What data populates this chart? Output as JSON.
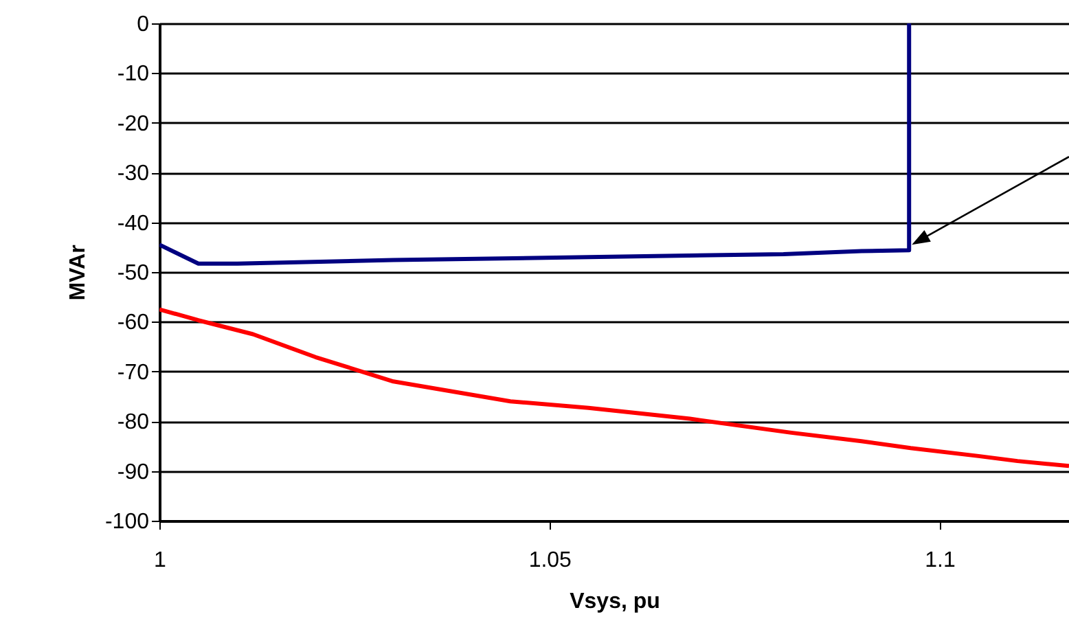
{
  "chart_data": {
    "type": "line",
    "xlabel": "Vsys, pu",
    "ylabel": "MVAr",
    "xlim": [
      1,
      1.1166
    ],
    "xticks": [
      1,
      1.05,
      1.1
    ],
    "ylim": [
      -100,
      0
    ],
    "yticks": [
      0,
      -10,
      -20,
      -30,
      -40,
      -50,
      -60,
      -70,
      -80,
      -90,
      -100
    ],
    "grid": "y",
    "line_style": "solid",
    "series": [
      {
        "color": "#000080",
        "x": [
          1,
          1.005,
          1.01,
          1.03,
          1.055,
          1.08,
          1.09,
          1.0961,
          1.0961
        ],
        "values": [
          -44.5,
          -48.3,
          -48.3,
          -47.6,
          -47,
          -46.4,
          -45.8,
          -45.6,
          0
        ]
      },
      {
        "color": "#ff0000",
        "x": [
          1,
          1.005,
          1.012,
          1.02,
          1.03,
          1.045,
          1.055,
          1.068,
          1.081,
          1.09,
          1.0963,
          1.105,
          1.11,
          1.1166
        ],
        "values": [
          -57.5,
          -59.7,
          -62.5,
          -67.1,
          -72,
          -76,
          -77.3,
          -79.5,
          -82.3,
          -84,
          -85.4,
          -87,
          -88,
          -89
        ]
      }
    ]
  }
}
